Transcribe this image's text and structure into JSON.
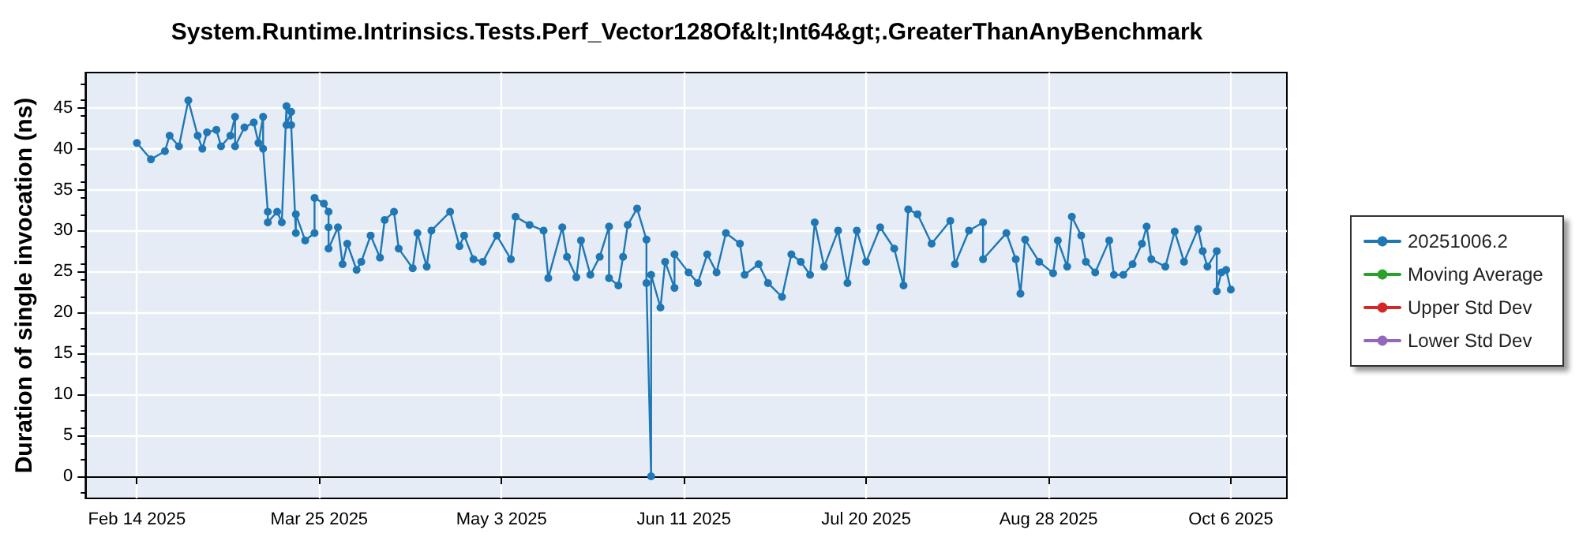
{
  "chart_data": {
    "type": "line",
    "title": "System.Runtime.Intrinsics.Tests.Perf_Vector128Of&lt;Int64&gt;.GreaterThanAnyBenchmark",
    "ylabel": "Duration of single invocation (ns)",
    "x": [
      "2025-02-14",
      "2025-02-17",
      "2025-02-20",
      "2025-02-21",
      "2025-02-23",
      "2025-02-25",
      "2025-02-27",
      "2025-02-28",
      "2025-03-01",
      "2025-03-03",
      "2025-03-04",
      "2025-03-06",
      "2025-03-07",
      "2025-03-07",
      "2025-03-09",
      "2025-03-11",
      "2025-03-12",
      "2025-03-13",
      "2025-03-13",
      "2025-03-14",
      "2025-03-14",
      "2025-03-16",
      "2025-03-17",
      "2025-03-18",
      "2025-03-18",
      "2025-03-19",
      "2025-03-19",
      "2025-03-20",
      "2025-03-20",
      "2025-03-22",
      "2025-03-24",
      "2025-03-24",
      "2025-03-26",
      "2025-03-27",
      "2025-03-27",
      "2025-03-27",
      "2025-03-29",
      "2025-03-30",
      "2025-03-31",
      "2025-04-02",
      "2025-04-03",
      "2025-04-05",
      "2025-04-07",
      "2025-04-08",
      "2025-04-10",
      "2025-04-11",
      "2025-04-14",
      "2025-04-15",
      "2025-04-17",
      "2025-04-18",
      "2025-04-22",
      "2025-04-24",
      "2025-04-25",
      "2025-04-27",
      "2025-04-29",
      "2025-05-02",
      "2025-05-05",
      "2025-05-06",
      "2025-05-09",
      "2025-05-12",
      "2025-05-13",
      "2025-05-16",
      "2025-05-17",
      "2025-05-19",
      "2025-05-20",
      "2025-05-22",
      "2025-05-24",
      "2025-05-26",
      "2025-05-26",
      "2025-05-28",
      "2025-05-29",
      "2025-05-30",
      "2025-06-01",
      "2025-06-03",
      "2025-06-03",
      "2025-06-04",
      "2025-06-04",
      "2025-06-06",
      "2025-06-07",
      "2025-06-09",
      "2025-06-09",
      "2025-06-12",
      "2025-06-14",
      "2025-06-16",
      "2025-06-18",
      "2025-06-20",
      "2025-06-23",
      "2025-06-24",
      "2025-06-27",
      "2025-06-29",
      "2025-07-02",
      "2025-07-04",
      "2025-07-06",
      "2025-07-08",
      "2025-07-09",
      "2025-07-11",
      "2025-07-14",
      "2025-07-16",
      "2025-07-18",
      "2025-07-20",
      "2025-07-23",
      "2025-07-26",
      "2025-07-28",
      "2025-07-29",
      "2025-07-31",
      "2025-08-03",
      "2025-08-07",
      "2025-08-08",
      "2025-08-11",
      "2025-08-14",
      "2025-08-14",
      "2025-08-19",
      "2025-08-21",
      "2025-08-22",
      "2025-08-23",
      "2025-08-26",
      "2025-08-29",
      "2025-08-30",
      "2025-09-01",
      "2025-09-02",
      "2025-09-04",
      "2025-09-05",
      "2025-09-07",
      "2025-09-10",
      "2025-09-11",
      "2025-09-13",
      "2025-09-15",
      "2025-09-17",
      "2025-09-18",
      "2025-09-19",
      "2025-09-22",
      "2025-09-24",
      "2025-09-26",
      "2025-09-29",
      "2025-09-30",
      "2025-10-01",
      "2025-10-03",
      "2025-10-03",
      "2025-10-04",
      "2025-10-05",
      "2025-10-06"
    ],
    "series": [
      {
        "name": "20251006.2",
        "color": "#1f77b4",
        "values": [
          40.7,
          38.7,
          39.7,
          41.6,
          40.3,
          45.9,
          41.6,
          40,
          42,
          42.3,
          40.3,
          41.6,
          43.9,
          40.3,
          42.6,
          43.2,
          40.7,
          43.9,
          40,
          32.3,
          31,
          32.3,
          31,
          45.2,
          42.9,
          44.5,
          42.9,
          29.7,
          32,
          28.8,
          29.7,
          34,
          33.3,
          32.3,
          30.4,
          27.8,
          30.4,
          25.9,
          28.4,
          25.2,
          26.2,
          29.4,
          26.7,
          31.3,
          32.3,
          27.8,
          25.4,
          29.7,
          25.6,
          30,
          32.3,
          28.1,
          29.4,
          26.5,
          26.2,
          29.4,
          26.5,
          31.7,
          30.7,
          30,
          24.2,
          30.4,
          26.8,
          24.3,
          28.8,
          24.6,
          26.8,
          30.5,
          24.2,
          23.3,
          26.8,
          30.7,
          32.7,
          28.9,
          23.6,
          0,
          24.6,
          20.6,
          26.2,
          23,
          27.1,
          24.9,
          23.6,
          27.1,
          24.9,
          29.7,
          28.4,
          24.6,
          25.9,
          23.6,
          21.9,
          27.1,
          26.2,
          24.6,
          31,
          25.6,
          30,
          23.6,
          30,
          26.2,
          30.4,
          27.8,
          23.3,
          32.6,
          32,
          28.4,
          31.2,
          25.9,
          30,
          31,
          26.5,
          29.7,
          26.5,
          22.3,
          28.9,
          26.2,
          24.8,
          28.8,
          25.6,
          31.7,
          29.4,
          26.2,
          24.9,
          28.8,
          24.6,
          24.6,
          25.9,
          28.4,
          30.5,
          26.5,
          25.6,
          29.9,
          26.2,
          30.2,
          27.5,
          25.6,
          27.5,
          22.6,
          24.9,
          25.2,
          22.8
        ]
      },
      {
        "name": "Moving Average",
        "color": "#2ca02c",
        "values": [
          null,
          null,
          null,
          null,
          null,
          null,
          null,
          null,
          null,
          null,
          null,
          null,
          null,
          null,
          null,
          null,
          null,
          null,
          null,
          null,
          null,
          null,
          null,
          null,
          null,
          null,
          null,
          null,
          null,
          null,
          null,
          null,
          null,
          null,
          null,
          null,
          null,
          null,
          null,
          null,
          null,
          null,
          null,
          null,
          null,
          null,
          null,
          null,
          null,
          null,
          null,
          null,
          null,
          null,
          null,
          null,
          null,
          null,
          null,
          null,
          null,
          null,
          null,
          null,
          null,
          null,
          null,
          null,
          null,
          null,
          null,
          null,
          null,
          null,
          null,
          null,
          null,
          null,
          null,
          null,
          null,
          null,
          null,
          null,
          null,
          null,
          null,
          null,
          null,
          null,
          null,
          null,
          null,
          null,
          null,
          null,
          null,
          null,
          null,
          null,
          null,
          null,
          null,
          null,
          null,
          null,
          null,
          null,
          null,
          null,
          null,
          null,
          null,
          null,
          null,
          null,
          null,
          null,
          null,
          null,
          null,
          null,
          null,
          null,
          null,
          null,
          null,
          null,
          null,
          null,
          null,
          null,
          null,
          null,
          null,
          null,
          null,
          null,
          null,
          null,
          null
        ]
      },
      {
        "name": "Upper Std Dev",
        "color": "#d62728",
        "values": [
          null,
          null,
          null,
          null,
          null,
          null,
          null,
          null,
          null,
          null,
          null,
          null,
          null,
          null,
          null,
          null,
          null,
          null,
          null,
          null,
          null,
          null,
          null,
          null,
          null,
          null,
          null,
          null,
          null,
          null,
          null,
          null,
          null,
          null,
          null,
          null,
          null,
          null,
          null,
          null,
          null,
          null,
          null,
          null,
          null,
          null,
          null,
          null,
          null,
          null,
          null,
          null,
          null,
          null,
          null,
          null,
          null,
          null,
          null,
          null,
          null,
          null,
          null,
          null,
          null,
          null,
          null,
          null,
          null,
          null,
          null,
          null,
          null,
          null,
          null,
          null,
          null,
          null,
          null,
          null,
          null,
          null,
          null,
          null,
          null,
          null,
          null,
          null,
          null,
          null,
          null,
          null,
          null,
          null,
          null,
          null,
          null,
          null,
          null,
          null,
          null,
          null,
          null,
          null,
          null,
          null,
          null,
          null,
          null,
          null,
          null,
          null,
          null,
          null,
          null,
          null,
          null,
          null,
          null,
          null,
          null,
          null,
          null,
          null,
          null,
          null,
          null,
          null,
          null,
          null,
          null,
          null,
          null,
          null,
          null,
          null,
          null,
          null,
          null,
          null,
          null
        ]
      },
      {
        "name": "Lower Std Dev",
        "color": "#9467bd",
        "values": [
          null,
          null,
          null,
          null,
          null,
          null,
          null,
          null,
          null,
          null,
          null,
          null,
          null,
          null,
          null,
          null,
          null,
          null,
          null,
          null,
          null,
          null,
          null,
          null,
          null,
          null,
          null,
          null,
          null,
          null,
          null,
          null,
          null,
          null,
          null,
          null,
          null,
          null,
          null,
          null,
          null,
          null,
          null,
          null,
          null,
          null,
          null,
          null,
          null,
          null,
          null,
          null,
          null,
          null,
          null,
          null,
          null,
          null,
          null,
          null,
          null,
          null,
          null,
          null,
          null,
          null,
          null,
          null,
          null,
          null,
          null,
          null,
          null,
          null,
          null,
          null,
          null,
          null,
          null,
          null,
          null,
          null,
          null,
          null,
          null,
          null,
          null,
          null,
          null,
          null,
          null,
          null,
          null,
          null,
          null,
          null,
          null,
          null,
          null,
          null,
          null,
          null,
          null,
          null,
          null,
          null,
          null,
          null,
          null,
          null,
          null,
          null,
          null,
          null,
          null,
          null,
          null,
          null,
          null,
          null,
          null,
          null,
          null,
          null,
          null,
          null,
          null,
          null,
          null,
          null,
          null,
          null,
          null,
          null,
          null,
          null,
          null,
          null,
          null,
          null,
          null
        ]
      }
    ],
    "xlim": [
      "2025-02-03",
      "2025-10-18"
    ],
    "xticks": [
      {
        "value": "2025-02-14",
        "label": "Feb 14 2025"
      },
      {
        "value": "2025-03-25",
        "label": "Mar 25 2025"
      },
      {
        "value": "2025-05-03",
        "label": "May 3 2025"
      },
      {
        "value": "2025-06-11",
        "label": "Jun 11 2025"
      },
      {
        "value": "2025-07-20",
        "label": "Jul 20 2025"
      },
      {
        "value": "2025-08-28",
        "label": "Aug 28 2025"
      },
      {
        "value": "2025-10-06",
        "label": "Oct 6 2025"
      }
    ],
    "ylim": [
      -2.7,
      49.3
    ],
    "yticks": [
      0,
      5,
      10,
      15,
      20,
      25,
      30,
      35,
      40,
      45
    ],
    "grid": true,
    "legend": "right",
    "marker": "circle",
    "line_style": "solid"
  }
}
